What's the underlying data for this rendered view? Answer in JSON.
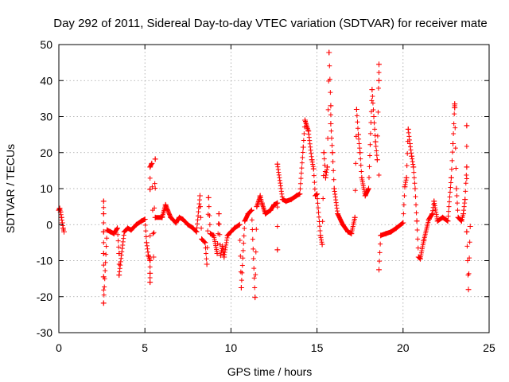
{
  "chart_data": {
    "type": "scatter",
    "title": "Day 292 of 2011, Sidereal Day-to-day VTEC variation (SDTVAR) for receiver mate",
    "xlabel": "GPS time / hours",
    "ylabel": "SDTVAR / TECUs",
    "xlim": [
      0,
      25
    ],
    "ylim": [
      -30,
      50
    ],
    "xticks": [
      0,
      5,
      10,
      15,
      20,
      25
    ],
    "yticks": [
      -30,
      -20,
      -10,
      0,
      10,
      20,
      30,
      40,
      50
    ],
    "grid": true,
    "marker": "plus",
    "color": "#ff0000",
    "series": [
      {
        "name": "SDTVAR",
        "points": [
          [
            0.0,
            4.0
          ],
          [
            0.1,
            3.5
          ],
          [
            0.15,
            2.0
          ],
          [
            0.2,
            0.5
          ],
          [
            0.25,
            -1.0
          ],
          [
            0.3,
            -2.0
          ],
          [
            0.05,
            4.5
          ],
          [
            2.6,
            6.5
          ],
          [
            2.6,
            3.0
          ],
          [
            2.6,
            -2.0
          ],
          [
            2.6,
            -8.0
          ],
          [
            2.6,
            -14.5
          ],
          [
            2.6,
            -21.8
          ],
          [
            2.8,
            -1.5
          ],
          [
            3.0,
            -2.0
          ],
          [
            3.2,
            -2.5
          ],
          [
            3.4,
            -1.0
          ],
          [
            3.5,
            -8.0
          ],
          [
            3.5,
            -14.0
          ],
          [
            3.8,
            -2.0
          ],
          [
            4.0,
            -1.0
          ],
          [
            4.2,
            -1.5
          ],
          [
            4.5,
            0.0
          ],
          [
            4.8,
            1.0
          ],
          [
            5.0,
            1.5
          ],
          [
            5.1,
            -5.0
          ],
          [
            5.2,
            -8.5
          ],
          [
            5.3,
            -10.0
          ],
          [
            5.3,
            -13.5
          ],
          [
            5.3,
            -16.0
          ],
          [
            5.3,
            9.8
          ],
          [
            5.3,
            16.0
          ],
          [
            5.4,
            17.0
          ],
          [
            5.5,
            -9.0
          ],
          [
            5.6,
            18.2
          ],
          [
            5.6,
            2.0
          ],
          [
            6.0,
            2.0
          ],
          [
            6.2,
            5.5
          ],
          [
            6.5,
            2.0
          ],
          [
            6.8,
            0.5
          ],
          [
            7.0,
            2.0
          ],
          [
            7.2,
            1.5
          ],
          [
            7.5,
            0.0
          ],
          [
            7.8,
            -1.0
          ],
          [
            8.0,
            -2.0
          ],
          [
            8.2,
            8.0
          ],
          [
            8.3,
            -4.0
          ],
          [
            8.5,
            -5.0
          ],
          [
            8.6,
            -11.0
          ],
          [
            8.7,
            7.5
          ],
          [
            8.8,
            -2.5
          ],
          [
            9.0,
            -3.0
          ],
          [
            9.2,
            -8.0
          ],
          [
            9.3,
            3.0
          ],
          [
            9.4,
            -8.5
          ],
          [
            9.5,
            -6.0
          ],
          [
            9.6,
            -9.0
          ],
          [
            9.8,
            -3.0
          ],
          [
            10.0,
            -2.0
          ],
          [
            10.2,
            -1.0
          ],
          [
            10.5,
            0.0
          ],
          [
            10.6,
            -17.5
          ],
          [
            10.8,
            1.0
          ],
          [
            11.0,
            3.0
          ],
          [
            11.2,
            4.0
          ],
          [
            11.4,
            -20.2
          ],
          [
            11.5,
            5.0
          ],
          [
            11.7,
            8.0
          ],
          [
            11.8,
            6.0
          ],
          [
            12.0,
            3.0
          ],
          [
            12.3,
            4.0
          ],
          [
            12.5,
            5.5
          ],
          [
            12.7,
            6.0
          ],
          [
            12.7,
            -7.0
          ],
          [
            12.7,
            16.8
          ],
          [
            13.0,
            7.0
          ],
          [
            13.2,
            6.5
          ],
          [
            13.5,
            7.0
          ],
          [
            13.8,
            8.0
          ],
          [
            14.0,
            8.5
          ],
          [
            14.2,
            21.5
          ],
          [
            14.3,
            29.0
          ],
          [
            14.5,
            26.0
          ],
          [
            14.7,
            18.0
          ],
          [
            14.8,
            15.5
          ],
          [
            14.9,
            8.0
          ],
          [
            15.0,
            8.5
          ],
          [
            15.2,
            -3.0
          ],
          [
            15.3,
            -5.5
          ],
          [
            15.4,
            20.0
          ],
          [
            15.5,
            13.0
          ],
          [
            15.6,
            16.0
          ],
          [
            15.7,
            47.8
          ],
          [
            15.8,
            33.0
          ],
          [
            15.8,
            28.0
          ],
          [
            15.9,
            20.0
          ],
          [
            16.0,
            10.0
          ],
          [
            16.2,
            3.0
          ],
          [
            16.5,
            0.0
          ],
          [
            16.8,
            -2.0
          ],
          [
            17.0,
            -2.5
          ],
          [
            17.2,
            2.0
          ],
          [
            17.3,
            32.0
          ],
          [
            17.4,
            25.0
          ],
          [
            17.5,
            20.0
          ],
          [
            17.6,
            13.0
          ],
          [
            17.8,
            8.0
          ],
          [
            18.0,
            10.0
          ],
          [
            18.2,
            37.5
          ],
          [
            18.3,
            30.0
          ],
          [
            18.4,
            23.0
          ],
          [
            18.5,
            18.0
          ],
          [
            18.6,
            44.5
          ],
          [
            18.6,
            40.0
          ],
          [
            18.6,
            -12.5
          ],
          [
            18.7,
            -3.0
          ],
          [
            19.0,
            -2.5
          ],
          [
            19.3,
            -2.0
          ],
          [
            19.6,
            -1.0
          ],
          [
            20.0,
            0.5
          ],
          [
            20.1,
            10.5
          ],
          [
            20.2,
            13.0
          ],
          [
            20.3,
            26.5
          ],
          [
            20.4,
            22.5
          ],
          [
            20.5,
            19.0
          ],
          [
            20.6,
            16.0
          ],
          [
            20.7,
            10.0
          ],
          [
            20.8,
            1.0
          ],
          [
            20.9,
            -9.0
          ],
          [
            21.0,
            -9.5
          ],
          [
            21.2,
            -4.5
          ],
          [
            21.5,
            1.5
          ],
          [
            21.7,
            3.0
          ],
          [
            21.8,
            6.5
          ],
          [
            22.0,
            1.0
          ],
          [
            22.3,
            2.0
          ],
          [
            22.6,
            1.0
          ],
          [
            22.8,
            13.0
          ],
          [
            22.9,
            22.5
          ],
          [
            23.0,
            33.5
          ],
          [
            23.0,
            32.5
          ],
          [
            23.1,
            10.0
          ],
          [
            23.2,
            2.0
          ],
          [
            23.4,
            1.0
          ],
          [
            23.5,
            3.0
          ],
          [
            23.6,
            7.0
          ],
          [
            23.7,
            16.0
          ],
          [
            23.7,
            27.5
          ],
          [
            23.7,
            -2.0
          ],
          [
            23.8,
            -18.0
          ],
          [
            23.9,
            -0.5
          ]
        ]
      }
    ]
  }
}
